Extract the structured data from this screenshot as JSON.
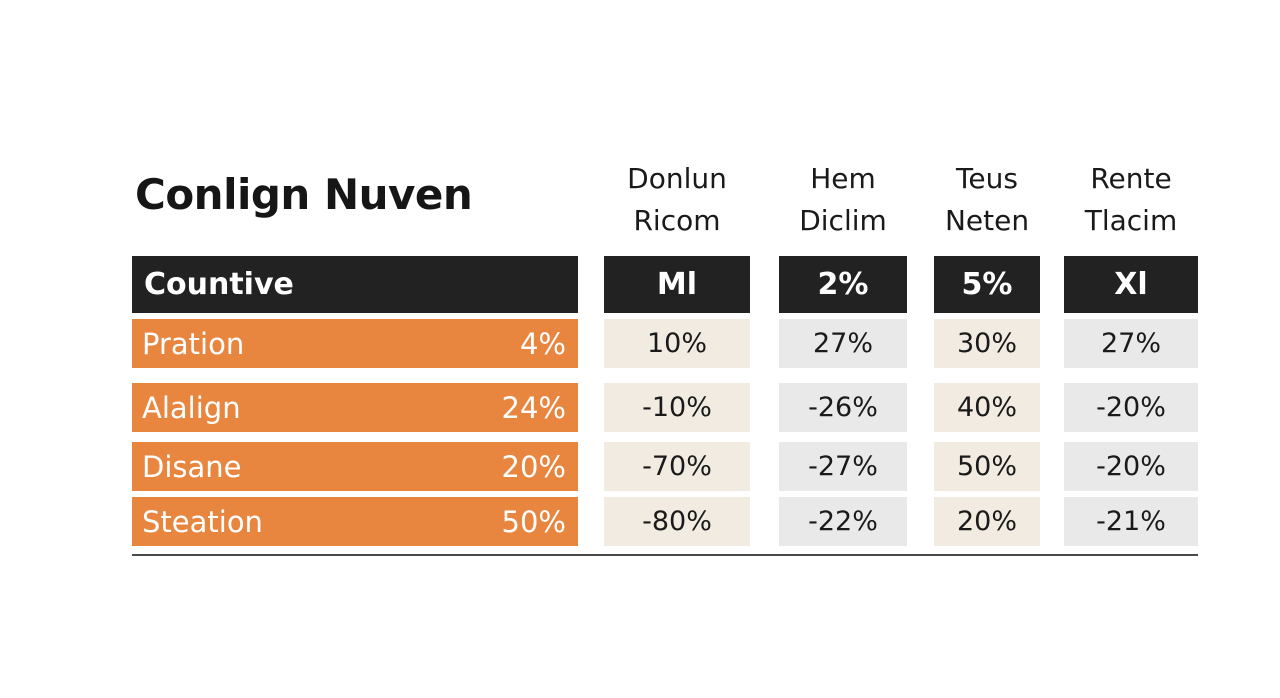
{
  "chart_data": {
    "type": "table",
    "title": "Conlign Nuven",
    "row_header": "Countive",
    "columns": [
      {
        "name": "Donlun Ricom",
        "name_lines": [
          "Donlun",
          "Ricom"
        ],
        "header_value": "Ml"
      },
      {
        "name": "Hem Diclim",
        "name_lines": [
          "Hem",
          "Diclim"
        ],
        "header_value": "2%"
      },
      {
        "name": "Teus Neten",
        "name_lines": [
          "Teus",
          "Neten"
        ],
        "header_value": "5%"
      },
      {
        "name": "Rente Tlacim",
        "name_lines": [
          "Rente",
          "Tlacim"
        ],
        "header_value": "Xl"
      }
    ],
    "rows": [
      {
        "label": "Pration",
        "value": "4%",
        "cells": [
          "10%",
          "27%",
          "30%",
          "27%"
        ]
      },
      {
        "label": "Alalign",
        "value": "24%",
        "cells": [
          "-10%",
          "-26%",
          "40%",
          "-20%"
        ]
      },
      {
        "label": "Disane",
        "value": "20%",
        "cells": [
          "-70%",
          "-27%",
          "50%",
          "-20%"
        ]
      },
      {
        "label": "Steation",
        "value": "50%",
        "cells": [
          "-80%",
          "-22%",
          "20%",
          "-21%"
        ]
      }
    ],
    "colors": {
      "header_bg": "#222222",
      "label_bg": "#e8863f",
      "cell_cream": "#f1ebe2",
      "cell_grey": "#e9e9e9"
    }
  }
}
